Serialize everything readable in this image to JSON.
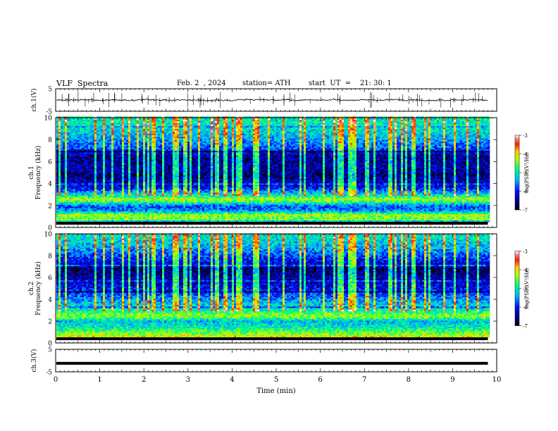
{
  "header": {
    "title": "VLF  Spectra",
    "date": "Feb. 2  , 2024",
    "station": "station= ATH",
    "start": "start  UT  =    21: 30: 1"
  },
  "chart_data": {
    "type": "heatmap",
    "title": "VLF  Spectra",
    "x": {
      "label": "Time  (min)",
      "range": [
        0,
        10
      ],
      "ticks": [
        "0",
        "1",
        "2",
        "3",
        "4",
        "5",
        "6",
        "7",
        "8",
        "9",
        "10"
      ],
      "data_end": 9.8
    },
    "panels": [
      {
        "name": "ch.1(V)",
        "type": "line",
        "ylabel": "ch.1(V)",
        "ylim": [
          -5,
          5
        ],
        "yticks": [
          "5",
          "-5"
        ],
        "baseline": 0,
        "noise_amplitude": 0.8
      },
      {
        "name": "ch.1 spectrogram",
        "type": "heatmap",
        "ylabel_line1": "ch.1",
        "ylabel_line2": "Frequency  (kHz)",
        "ylim": [
          0,
          10
        ],
        "yticks": [
          "0",
          "2",
          "4",
          "6",
          "8",
          "10"
        ],
        "colorbar": {
          "label": "log(PSD)(V²/Hz)",
          "range": [
            -7,
            -3
          ],
          "ticks": [
            "-3",
            "-4",
            "-5",
            "-6",
            "-7"
          ]
        },
        "bands_khz": [
          [
            0.2,
            -4.6
          ],
          [
            0.6,
            -4.3
          ],
          [
            1.0,
            -5.5
          ],
          [
            1.4,
            -5.8
          ],
          [
            2.1,
            -4.2
          ],
          [
            2.4,
            -4.9
          ],
          [
            3.3,
            -6.2
          ],
          [
            4.4,
            -6.6
          ],
          [
            5.0,
            -6.4
          ],
          [
            6.2,
            -6.5
          ],
          [
            7.0,
            -5.8
          ],
          [
            8.5,
            -5.2
          ],
          [
            9.5,
            -5.0
          ]
        ]
      },
      {
        "name": "ch.2 spectrogram",
        "type": "heatmap",
        "ylabel_line1": "ch.2",
        "ylabel_line2": "Frequency  (kHz)",
        "ylim": [
          0,
          10
        ],
        "yticks": [
          "0",
          "2",
          "4",
          "6",
          "8",
          "10"
        ],
        "colorbar": {
          "label": "log(PSD)(V²/Hz)",
          "range": [
            -7,
            -3
          ],
          "ticks": [
            "-3",
            "-4",
            "-5",
            "-6",
            "-7"
          ]
        },
        "bands_khz": [
          [
            0.4,
            -4.5
          ],
          [
            0.9,
            -5.0
          ],
          [
            1.5,
            -5.3
          ],
          [
            2.0,
            -4.3
          ],
          [
            2.6,
            -5.0
          ],
          [
            3.4,
            -5.4
          ],
          [
            4.4,
            -6.0
          ],
          [
            5.2,
            -6.3
          ],
          [
            6.4,
            -6.6
          ],
          [
            7.5,
            -6.0
          ],
          [
            8.6,
            -5.4
          ],
          [
            9.6,
            -5.1
          ]
        ]
      },
      {
        "name": "ch.3(V)",
        "type": "line",
        "ylabel": "ch.3(V)",
        "ylim": [
          -5,
          5
        ],
        "yticks": [
          "5",
          "-5"
        ],
        "baseline": -1.2,
        "noise_amplitude": 0
      }
    ],
    "grid": false
  }
}
